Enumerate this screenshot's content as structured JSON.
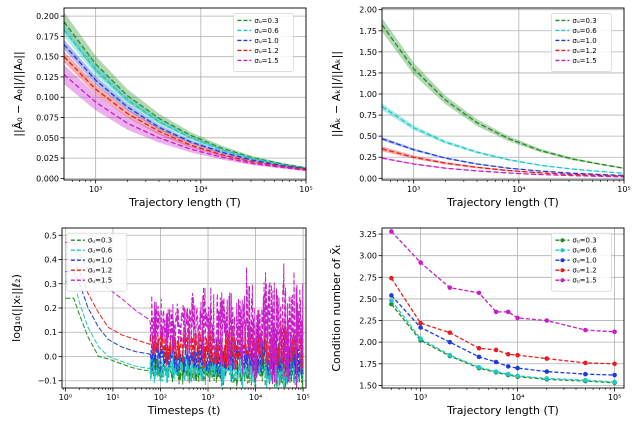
{
  "chart_data": [
    {
      "type": "line",
      "id": "p1",
      "xscale": "log",
      "xlim": [
        500,
        100000
      ],
      "ylim": [
        -0.002,
        0.21
      ],
      "xticks": [
        1000,
        10000,
        100000
      ],
      "xtick_labels": [
        "10³",
        "10⁴",
        "10⁵"
      ],
      "yticks": [
        0,
        0.025,
        0.05,
        0.075,
        0.1,
        0.125,
        0.15,
        0.175,
        0.2
      ],
      "ytick_labels": [
        "0.000",
        "0.025",
        "0.050",
        "0.075",
        "0.100",
        "0.125",
        "0.150",
        "0.175",
        "0.200"
      ],
      "xlabel": "Trajectory length (T)",
      "ylabel": "||Â₀ − A₀||/||A₀||",
      "grid": true,
      "legend": "top-right",
      "x": [
        500,
        1000,
        2000,
        4000,
        8000,
        16000,
        32000,
        64000,
        100000
      ],
      "series": [
        {
          "name": "σᵤ=0.3",
          "color": "#228b22",
          "values": [
            0.193,
            0.141,
            0.102,
            0.074,
            0.053,
            0.037,
            0.025,
            0.017,
            0.013
          ],
          "band": [
            0.012,
            0.01,
            0.008,
            0.006,
            0.004,
            0.003,
            0.002,
            0.0015,
            0.001
          ]
        },
        {
          "name": "σᵤ=0.6",
          "color": "#1ec8c8",
          "values": [
            0.183,
            0.134,
            0.097,
            0.07,
            0.05,
            0.035,
            0.024,
            0.016,
            0.012
          ],
          "band": [
            0.008,
            0.007,
            0.005,
            0.004,
            0.003,
            0.002,
            0.0015,
            0.001,
            0.001
          ]
        },
        {
          "name": "σᵤ=1.0",
          "color": "#1e3cdc",
          "values": [
            0.165,
            0.121,
            0.088,
            0.063,
            0.045,
            0.032,
            0.022,
            0.015,
            0.012
          ],
          "band": [
            0.006,
            0.005,
            0.004,
            0.003,
            0.002,
            0.002,
            0.001,
            0.001,
            0.001
          ]
        },
        {
          "name": "σᵤ=1.2",
          "color": "#e61e1e",
          "values": [
            0.15,
            0.11,
            0.08,
            0.058,
            0.041,
            0.029,
            0.02,
            0.014,
            0.011
          ],
          "band": [
            0.007,
            0.006,
            0.005,
            0.004,
            0.003,
            0.002,
            0.0015,
            0.001,
            0.001
          ]
        },
        {
          "name": "σᵤ=1.5",
          "color": "#c81ec8",
          "values": [
            0.128,
            0.094,
            0.068,
            0.05,
            0.036,
            0.026,
            0.018,
            0.013,
            0.01
          ],
          "band": [
            0.012,
            0.01,
            0.008,
            0.006,
            0.004,
            0.003,
            0.002,
            0.0015,
            0.001
          ]
        }
      ]
    },
    {
      "type": "line",
      "id": "p2",
      "xscale": "log",
      "xlim": [
        500,
        100000
      ],
      "ylim": [
        -0.02,
        2.02
      ],
      "xticks": [
        1000,
        10000,
        100000
      ],
      "xtick_labels": [
        "10³",
        "10⁴",
        "10⁵"
      ],
      "yticks": [
        0,
        0.25,
        0.5,
        0.75,
        1.0,
        1.25,
        1.5,
        1.75,
        2.0
      ],
      "ytick_labels": [
        "0.00",
        "0.25",
        "0.50",
        "0.75",
        "1.00",
        "1.25",
        "1.50",
        "1.75",
        "2.00"
      ],
      "xlabel": "Trajectory length (T)",
      "ylabel": "||Âₖ − Aₖ||/||Aₖ||",
      "grid": true,
      "legend": "top-right",
      "x": [
        500,
        1000,
        2000,
        4000,
        8000,
        16000,
        32000,
        64000,
        100000
      ],
      "series": [
        {
          "name": "σᵤ=0.3",
          "color": "#228b22",
          "values": [
            1.82,
            1.3,
            0.93,
            0.66,
            0.47,
            0.33,
            0.23,
            0.16,
            0.12
          ],
          "band": [
            0.08,
            0.07,
            0.05,
            0.04,
            0.03,
            0.02,
            0.015,
            0.01,
            0.008
          ]
        },
        {
          "name": "σᵤ=0.6",
          "color": "#1ec8c8",
          "values": [
            0.85,
            0.6,
            0.43,
            0.31,
            0.22,
            0.155,
            0.11,
            0.078,
            0.06
          ],
          "band": [
            0.04,
            0.03,
            0.02,
            0.015,
            0.01,
            0.008,
            0.006,
            0.004,
            0.003
          ]
        },
        {
          "name": "σᵤ=1.0",
          "color": "#1e3cdc",
          "values": [
            0.47,
            0.34,
            0.24,
            0.17,
            0.12,
            0.086,
            0.061,
            0.043,
            0.034
          ],
          "band": [
            0.02,
            0.015,
            0.01,
            0.008,
            0.006,
            0.004,
            0.003,
            0.002,
            0.002
          ]
        },
        {
          "name": "σᵤ=1.2",
          "color": "#e61e1e",
          "values": [
            0.35,
            0.25,
            0.18,
            0.13,
            0.092,
            0.065,
            0.046,
            0.033,
            0.026
          ],
          "band": [
            0.03,
            0.02,
            0.015,
            0.01,
            0.008,
            0.006,
            0.004,
            0.003,
            0.002
          ]
        },
        {
          "name": "σᵤ=1.5",
          "color": "#c81ec8",
          "values": [
            0.24,
            0.17,
            0.12,
            0.088,
            0.063,
            0.045,
            0.032,
            0.023,
            0.018
          ],
          "band": [
            0.01,
            0.008,
            0.006,
            0.004,
            0.003,
            0.002,
            0.002,
            0.001,
            0.001
          ]
        }
      ]
    },
    {
      "type": "line",
      "id": "p3",
      "xscale": "log",
      "xlim": [
        0.85,
        115000
      ],
      "ylim": [
        -0.13,
        0.53
      ],
      "xticks": [
        1,
        10,
        100,
        1000,
        10000,
        100000
      ],
      "xtick_labels": [
        "10⁰",
        "10¹",
        "10²",
        "10³",
        "10⁴",
        "10⁵"
      ],
      "yticks": [
        -0.1,
        0.0,
        0.1,
        0.2,
        0.3,
        0.4,
        0.5
      ],
      "ytick_labels": [
        "−0.1",
        "0.0",
        "0.1",
        "0.2",
        "0.3",
        "0.4",
        "0.5"
      ],
      "xlabel": "Timesteps (t)",
      "ylabel": "log₁₀(||xₜ||ℓ₂)",
      "grid": true,
      "legend": "top-left",
      "series": [
        {
          "name": "σᵤ=0.3",
          "color": "#228b22",
          "x": [
            1,
            1.5,
            2,
            3,
            5,
            8,
            15,
            30,
            60
          ],
          "values": [
            0.24,
            0.24,
            0.17,
            0.08,
            0.0,
            -0.01,
            -0.03,
            -0.05,
            -0.06
          ],
          "noise": {
            "center": -0.06,
            "amp": 0.035,
            "amp_growth": 0.02
          }
        },
        {
          "name": "σᵤ=0.6",
          "color": "#1ec8c8",
          "x": [
            1,
            1.5,
            2,
            3,
            5,
            8,
            15,
            30,
            60
          ],
          "values": [
            0.31,
            0.31,
            0.22,
            0.12,
            0.04,
            0.0,
            -0.02,
            -0.04,
            -0.05
          ],
          "noise": {
            "center": -0.05,
            "amp": 0.04,
            "amp_growth": 0.02
          }
        },
        {
          "name": "σᵤ=1.0",
          "color": "#1e3cdc",
          "x": [
            1,
            1.5,
            2,
            3,
            5,
            8,
            15,
            30,
            60
          ],
          "values": [
            0.35,
            0.35,
            0.3,
            0.2,
            0.12,
            0.07,
            0.04,
            0.02,
            0.01
          ],
          "noise": {
            "center": 0.0,
            "amp": 0.045,
            "amp_growth": 0.03
          }
        },
        {
          "name": "σᵤ=1.2",
          "color": "#e61e1e",
          "x": [
            1,
            1.5,
            2,
            3,
            5,
            8,
            15,
            30,
            60
          ],
          "values": [
            0.4,
            0.4,
            0.35,
            0.26,
            0.18,
            0.12,
            0.09,
            0.07,
            0.05
          ],
          "noise": {
            "center": 0.04,
            "amp": 0.05,
            "amp_growth": 0.04
          }
        },
        {
          "name": "σᵤ=1.5",
          "color": "#c81ec8",
          "x": [
            1,
            1.5,
            2,
            3,
            5,
            8,
            15,
            30,
            60
          ],
          "values": [
            0.47,
            0.47,
            0.42,
            0.36,
            0.31,
            0.28,
            0.24,
            0.19,
            0.15
          ],
          "noise": {
            "center": 0.12,
            "amp": 0.09,
            "amp_growth": 0.11
          }
        }
      ]
    },
    {
      "type": "line",
      "id": "p4",
      "xscale": "log",
      "xlim": [
        400,
        125000
      ],
      "ylim": [
        1.47,
        3.32
      ],
      "xticks": [
        1000,
        10000,
        100000
      ],
      "xtick_labels": [
        "10³",
        "10⁴",
        "10⁵"
      ],
      "yticks": [
        1.5,
        1.75,
        2.0,
        2.25,
        2.5,
        2.75,
        3.0,
        3.25
      ],
      "ytick_labels": [
        "1.50",
        "1.75",
        "2.00",
        "2.25",
        "2.50",
        "2.75",
        "3.00",
        "3.25"
      ],
      "xlabel": "Trajectory length (T)",
      "ylabel": "Condition number of X̃ₜ",
      "grid": true,
      "legend": "top-right",
      "markers": true,
      "x": [
        500,
        1000,
        2000,
        4000,
        6000,
        8000,
        10000,
        20000,
        50000,
        100000
      ],
      "series": [
        {
          "name": "σᵤ=0.3",
          "color": "#228b22",
          "values": [
            2.44,
            2.02,
            1.84,
            1.7,
            1.65,
            1.62,
            1.6,
            1.57,
            1.55,
            1.53
          ]
        },
        {
          "name": "σᵤ=0.6",
          "color": "#1ec8c8",
          "values": [
            2.48,
            2.04,
            1.85,
            1.71,
            1.66,
            1.63,
            1.61,
            1.58,
            1.56,
            1.54
          ]
        },
        {
          "name": "σᵤ=1.0",
          "color": "#1e3cdc",
          "values": [
            2.54,
            2.17,
            2.0,
            1.83,
            1.77,
            1.72,
            1.7,
            1.66,
            1.63,
            1.62
          ]
        },
        {
          "name": "σᵤ=1.2",
          "color": "#e61e1e",
          "values": [
            2.74,
            2.22,
            2.11,
            1.93,
            1.91,
            1.86,
            1.85,
            1.81,
            1.76,
            1.75
          ]
        },
        {
          "name": "σᵤ=1.5",
          "color": "#c81ec8",
          "values": [
            3.28,
            2.92,
            2.63,
            2.57,
            2.35,
            2.35,
            2.28,
            2.25,
            2.14,
            2.12
          ]
        }
      ]
    }
  ]
}
